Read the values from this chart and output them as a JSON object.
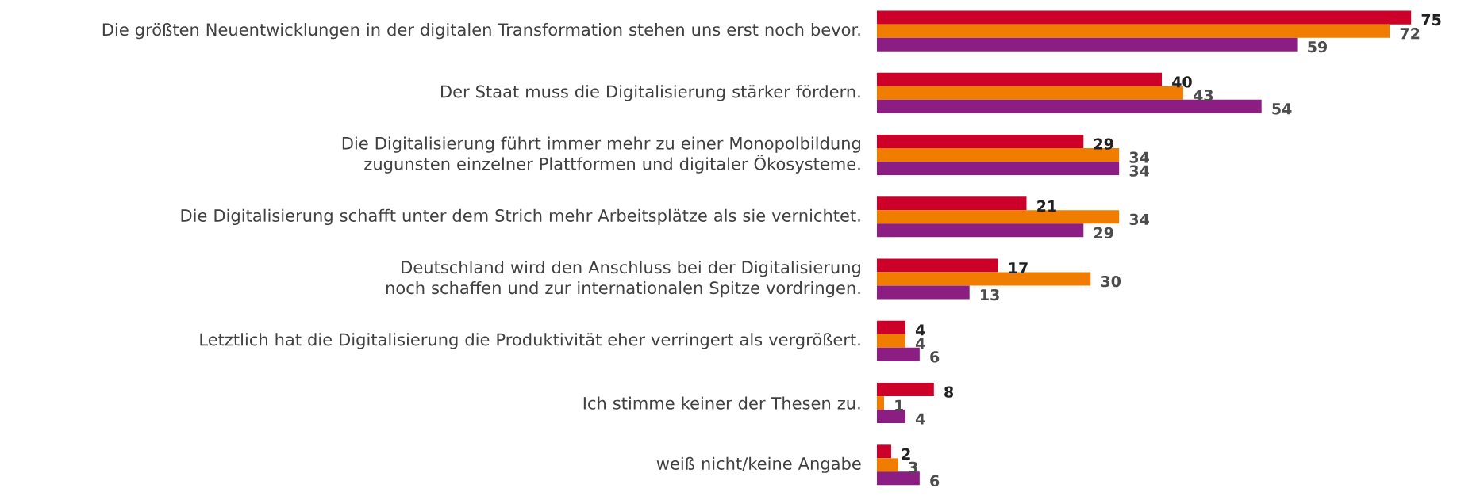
{
  "chart_data": {
    "type": "bar",
    "orientation": "horizontal",
    "data_labels": true,
    "categories": [
      "Die größten Neuentwicklungen in der digitalen Transformation stehen uns erst noch bevor.",
      "Der Staat muss die Digitalisierung stärker fördern.",
      "Die Digitalisierung führt immer mehr zu einer Monopolbildung zugunsten einzelner Plattformen und digitaler Ökosysteme.",
      "Die Digitalisierung schafft unter dem Strich mehr Arbeitsplätze als sie vernichtet.",
      "Deutschland wird den Anschluss bei der Digitalisierung noch schaffen und zur internationalen Spitze vordringen.",
      "Letztlich hat die Digitalisierung die Produktivität eher verringert als vergrößert.",
      "Ich stimme keiner der Thesen zu.",
      "weiß nicht/keine Angabe"
    ],
    "series": [
      {
        "color": "#cc0029",
        "values": [
          75,
          40,
          29,
          21,
          17,
          4,
          8,
          2
        ]
      },
      {
        "color": "#f07d00",
        "values": [
          72,
          43,
          34,
          34,
          30,
          4,
          1,
          3
        ]
      },
      {
        "color": "#8c1d82",
        "values": [
          59,
          54,
          34,
          29,
          13,
          6,
          4,
          6
        ]
      }
    ]
  }
}
